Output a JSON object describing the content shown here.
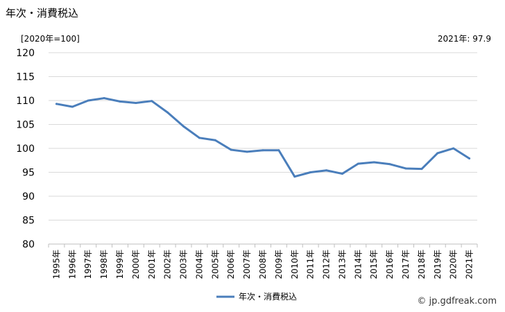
{
  "header": {
    "title": "年次・消費税込",
    "unit": "[2020年=100]",
    "latest": "2021年: 97.9"
  },
  "footer": {
    "credit": "© jp.gdfreak.com"
  },
  "chart_data": {
    "type": "line",
    "title": "年次・消費税込",
    "x": [
      "1995年",
      "1996年",
      "1997年",
      "1998年",
      "1999年",
      "2000年",
      "2001年",
      "2002年",
      "2003年",
      "2004年",
      "2005年",
      "2006年",
      "2007年",
      "2008年",
      "2009年",
      "2010年",
      "2011年",
      "2012年",
      "2013年",
      "2014年",
      "2015年",
      "2016年",
      "2017年",
      "2018年",
      "2019年",
      "2020年",
      "2021年"
    ],
    "series": [
      {
        "name": "年次・消費税込",
        "color": "#4a7ebb",
        "values": [
          109.3,
          108.7,
          110.0,
          110.5,
          109.8,
          109.5,
          109.9,
          107.5,
          104.6,
          102.2,
          101.7,
          99.7,
          99.3,
          99.6,
          99.6,
          94.1,
          95.0,
          95.4,
          94.7,
          96.8,
          97.1,
          96.7,
          95.8,
          95.7,
          99.0,
          100.0,
          97.9
        ]
      }
    ],
    "ylim": [
      80,
      120
    ],
    "yticks": [
      "80",
      "85",
      "90",
      "95",
      "100",
      "105",
      "110",
      "115",
      "120"
    ],
    "grid": true,
    "legend": "bottom-center"
  }
}
